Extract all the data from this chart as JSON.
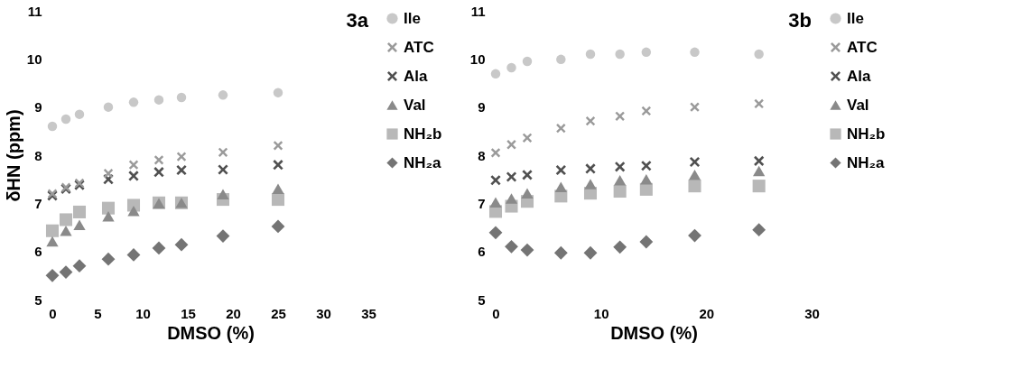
{
  "chart_data": [
    {
      "type": "scatter",
      "title": "3a",
      "xlabel": "DMSO (%)",
      "ylabel": "δHN (ppm)",
      "xlim": [
        0,
        35
      ],
      "xticks": [
        0,
        5,
        10,
        15,
        20,
        25,
        30,
        35
      ],
      "ylim": [
        5,
        11
      ],
      "yticks": [
        5,
        6,
        7,
        8,
        9,
        10,
        11
      ],
      "grid": false,
      "legend": "right",
      "x": [
        0,
        1.5,
        3,
        6.2,
        9,
        11.8,
        14.3,
        18.9,
        25
      ],
      "series": [
        {
          "name": "Ile",
          "color": "#c8c8c8",
          "marker": "circle",
          "values": [
            8.6,
            8.75,
            8.85,
            9.0,
            9.1,
            9.15,
            9.2,
            9.25,
            9.3
          ]
        },
        {
          "name": "ATC",
          "color": "#9a9a9a",
          "marker": "cross",
          "values": [
            7.2,
            7.33,
            7.42,
            7.62,
            7.8,
            7.9,
            7.97,
            8.06,
            8.2
          ]
        },
        {
          "name": "Ala",
          "color": "#505050",
          "marker": "cross",
          "values": [
            7.16,
            7.3,
            7.38,
            7.5,
            7.57,
            7.65,
            7.69,
            7.7,
            7.8
          ]
        },
        {
          "name": "Val",
          "color": "#8a8a8a",
          "marker": "triangle",
          "values": [
            6.21,
            6.43,
            6.55,
            6.73,
            6.84,
            7.0,
            7.01,
            7.19,
            7.3
          ]
        },
        {
          "name": "NH₂b",
          "color": "#b8b8b8",
          "marker": "square",
          "values": [
            6.43,
            6.66,
            6.82,
            6.9,
            6.96,
            7.01,
            7.01,
            7.08,
            7.08
          ]
        },
        {
          "name": "NH₂a",
          "color": "#747474",
          "marker": "diamond",
          "values": [
            5.5,
            5.57,
            5.7,
            5.84,
            5.93,
            6.07,
            6.14,
            6.32,
            6.52
          ]
        }
      ]
    },
    {
      "type": "scatter",
      "title": "3b",
      "xlabel": "DMSO (%)",
      "xlim": [
        0,
        30
      ],
      "xticks": [
        0,
        10,
        20,
        30
      ],
      "ylim": [
        5,
        11
      ],
      "yticks": [
        5,
        6,
        7,
        8,
        9,
        10,
        11
      ],
      "grid": false,
      "legend": "right",
      "x": [
        0,
        1.5,
        3,
        6.2,
        9,
        11.8,
        14.3,
        18.9,
        25
      ],
      "series": [
        {
          "name": "Ile",
          "color": "#c8c8c8",
          "marker": "circle",
          "values": [
            9.69,
            9.82,
            9.95,
            9.99,
            10.1,
            10.1,
            10.14,
            10.14,
            10.1
          ]
        },
        {
          "name": "ATC",
          "color": "#9a9a9a",
          "marker": "cross",
          "values": [
            8.05,
            8.22,
            8.36,
            8.56,
            8.71,
            8.81,
            8.92,
            9.0,
            9.07
          ]
        },
        {
          "name": "Ala",
          "color": "#505050",
          "marker": "cross",
          "values": [
            7.48,
            7.55,
            7.59,
            7.69,
            7.72,
            7.76,
            7.78,
            7.86,
            7.88
          ]
        },
        {
          "name": "Val",
          "color": "#8a8a8a",
          "marker": "triangle",
          "values": [
            7.02,
            7.1,
            7.21,
            7.34,
            7.4,
            7.48,
            7.5,
            7.59,
            7.67
          ]
        },
        {
          "name": "NH₂b",
          "color": "#b8b8b8",
          "marker": "square",
          "values": [
            6.83,
            6.94,
            7.04,
            7.15,
            7.21,
            7.25,
            7.29,
            7.36,
            7.36
          ]
        },
        {
          "name": "NH₂a",
          "color": "#747474",
          "marker": "diamond",
          "values": [
            6.39,
            6.1,
            6.03,
            5.97,
            5.97,
            6.09,
            6.2,
            6.33,
            6.45
          ]
        }
      ]
    }
  ]
}
